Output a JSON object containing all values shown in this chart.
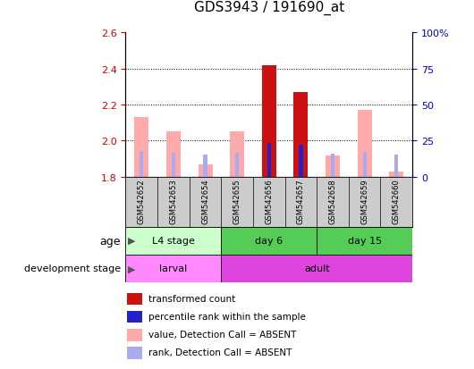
{
  "title": "GDS3943 / 191690_at",
  "samples": [
    "GSM542652",
    "GSM542653",
    "GSM542654",
    "GSM542655",
    "GSM542656",
    "GSM542657",
    "GSM542658",
    "GSM542659",
    "GSM542660"
  ],
  "transformed_count": [
    null,
    null,
    null,
    null,
    2.42,
    2.27,
    null,
    null,
    null
  ],
  "percentile_rank": [
    null,
    null,
    null,
    null,
    23.5,
    22.0,
    null,
    null,
    null
  ],
  "absent_value": [
    2.13,
    2.05,
    1.87,
    2.05,
    null,
    null,
    1.92,
    2.17,
    1.83
  ],
  "absent_rank": [
    17.5,
    16.5,
    15.5,
    16.5,
    null,
    null,
    16.0,
    17.0,
    15.5
  ],
  "ylim_left": [
    1.8,
    2.6
  ],
  "ylim_right": [
    0,
    100
  ],
  "yticks_left": [
    1.8,
    2.0,
    2.2,
    2.4,
    2.6
  ],
  "yticks_right": [
    0,
    25,
    50,
    75,
    100
  ],
  "ytick_labels_right": [
    "0",
    "25",
    "50",
    "75",
    "100%"
  ],
  "bar_width": 0.45,
  "rank_bar_width": 0.12,
  "absent_bar_color": "#ffaaaa",
  "absent_rank_color": "#aaaaee",
  "present_bar_color": "#cc1111",
  "present_rank_color": "#2222cc",
  "tick_color_left": "#cc0000",
  "tick_color_right": "#0000cc",
  "age_groups": [
    {
      "label": "L4 stage",
      "start": 0,
      "end": 3,
      "color": "#ccffcc"
    },
    {
      "label": "day 6",
      "start": 3,
      "end": 6,
      "color": "#55cc55"
    },
    {
      "label": "day 15",
      "start": 6,
      "end": 9,
      "color": "#55cc55"
    }
  ],
  "dev_groups": [
    {
      "label": "larval",
      "start": 0,
      "end": 3,
      "color": "#ff88ff"
    },
    {
      "label": "adult",
      "start": 3,
      "end": 9,
      "color": "#dd44dd"
    }
  ],
  "sample_bg": "#cccccc",
  "legend_items": [
    {
      "color": "#cc1111",
      "label": "transformed count"
    },
    {
      "color": "#2222cc",
      "label": "percentile rank within the sample"
    },
    {
      "color": "#ffaaaa",
      "label": "value, Detection Call = ABSENT"
    },
    {
      "color": "#aaaaee",
      "label": "rank, Detection Call = ABSENT"
    }
  ]
}
